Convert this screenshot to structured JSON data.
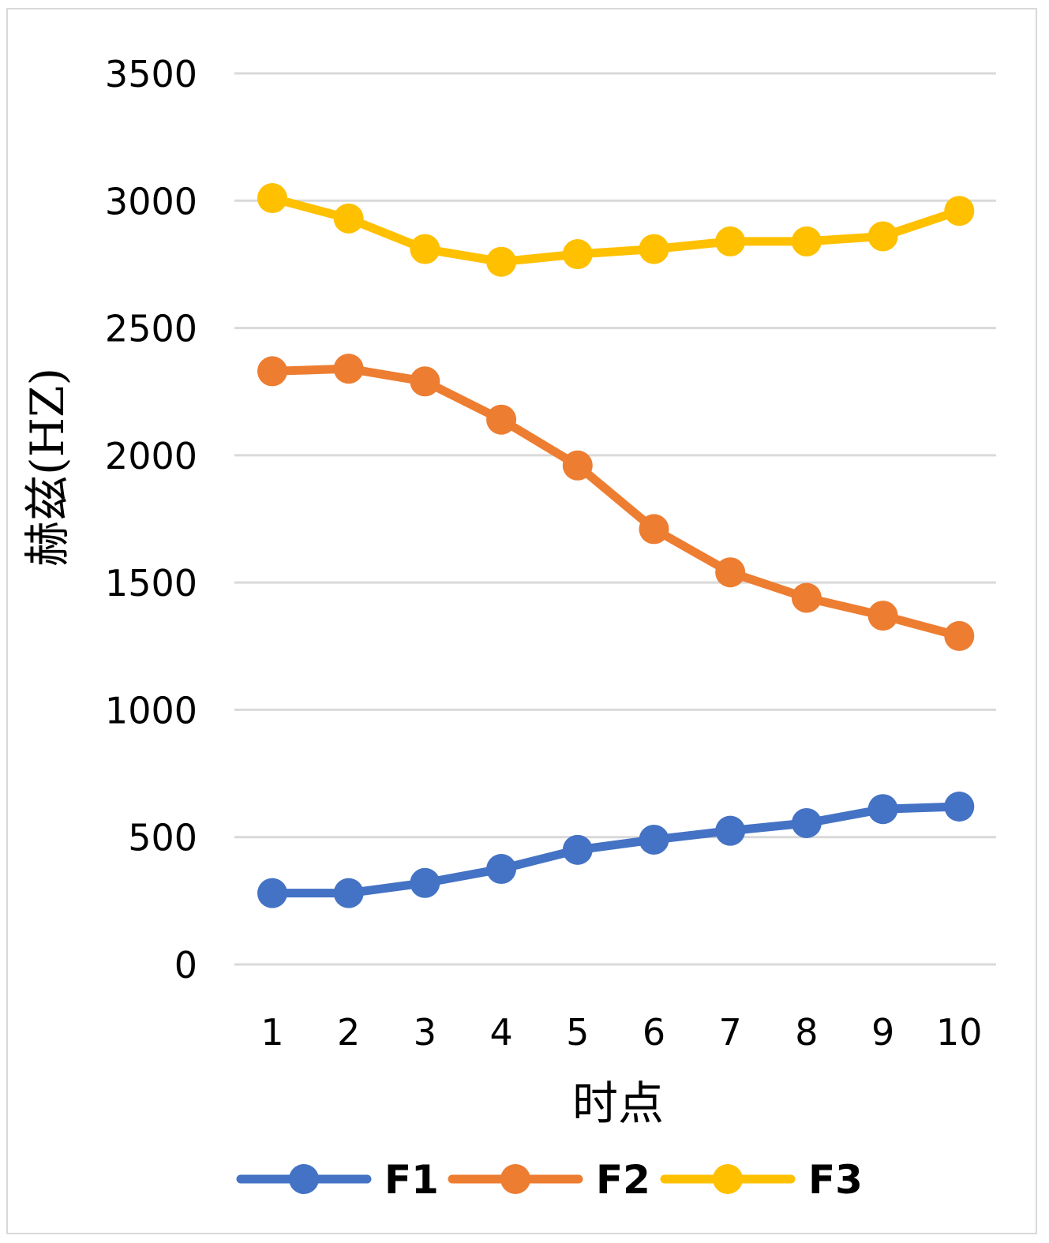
{
  "chart_data": {
    "type": "line",
    "title": "",
    "xlabel": "时点",
    "ylabel": "赫兹(HZ)",
    "x": [
      1,
      2,
      3,
      4,
      5,
      6,
      7,
      8,
      9,
      10
    ],
    "ylim": [
      0,
      3500
    ],
    "yticks": [
      0,
      500,
      1000,
      1500,
      2000,
      2500,
      3000,
      3500
    ],
    "grid": true,
    "legend_position": "bottom",
    "series": [
      {
        "name": "F1",
        "color": "#4472c4",
        "values": [
          280,
          280,
          320,
          375,
          450,
          490,
          525,
          555,
          610,
          620
        ]
      },
      {
        "name": "F2",
        "color": "#ed7d31",
        "values": [
          2330,
          2340,
          2290,
          2140,
          1960,
          1710,
          1540,
          1440,
          1370,
          1290
        ]
      },
      {
        "name": "F3",
        "color": "#ffc000",
        "values": [
          3010,
          2930,
          2810,
          2760,
          2790,
          2810,
          2840,
          2840,
          2860,
          2960
        ]
      }
    ]
  }
}
